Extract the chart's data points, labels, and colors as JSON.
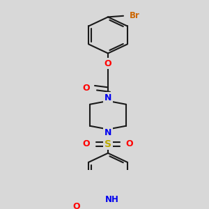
{
  "bg_color": "#d8d8d8",
  "bond_color": "#1a1a1a",
  "bond_width": 1.5,
  "atom_colors": {
    "Br": "#cc6600",
    "O": "#ff0000",
    "N": "#0000ee",
    "S": "#bbaa00",
    "C": "#000000",
    "H": "#008888"
  },
  "figsize": [
    3.0,
    3.0
  ],
  "dpi": 100
}
